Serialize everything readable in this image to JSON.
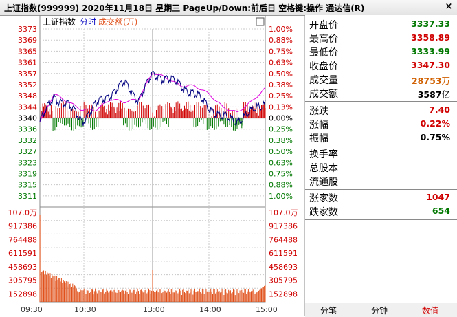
{
  "window": {
    "title": "上证指数(999999)  2020年11月18日  星期三  PageUp/Down:前后日  空格键:操作  通达信(R)",
    "close_label": "×"
  },
  "chart_header": {
    "name": "上证指数",
    "mode": "分时",
    "volume_label": "成交额(万)",
    "box_glyph": "□"
  },
  "price_axis": {
    "prices": [
      "3373",
      "3369",
      "3365",
      "3361",
      "3357",
      "3352",
      "3348",
      "3344",
      "3340",
      "3336",
      "3332",
      "3327",
      "3323",
      "3319",
      "3315",
      "3311"
    ],
    "percents": [
      "1.00%",
      "0.88%",
      "0.75%",
      "0.63%",
      "0.50%",
      "0.38%",
      "0.25%",
      "0.13%",
      "0.00%",
      "0.25%",
      "0.38%",
      "0.50%",
      "0.63%",
      "0.75%",
      "0.88%",
      "1.00%"
    ]
  },
  "volume_axis": {
    "labels": [
      "107.0万",
      "917386",
      "764488",
      "611591",
      "458693",
      "305795",
      "152898"
    ]
  },
  "time_axis": [
    "09:30",
    "10:30",
    "13:00",
    "14:00",
    "15:00"
  ],
  "colors": {
    "up": "#d00000",
    "down": "#007800",
    "index_line": "#000080",
    "avg_line": "#e000e0",
    "volume": "#e0501a",
    "grid": "#c8c8c8"
  },
  "chart_data": {
    "type": "line",
    "y_range": [
      3306.7,
      3373.3
    ],
    "prev_close": 3340.0,
    "x": [
      "09:30",
      "09:45",
      "10:00",
      "10:15",
      "10:30",
      "10:45",
      "11:00",
      "11:15",
      "11:30/13:00",
      "13:15",
      "13:30",
      "13:45",
      "14:00",
      "14:15",
      "14:30",
      "14:45",
      "15:00"
    ],
    "series": [
      {
        "values": [
          3338.5,
          3348,
          3345,
          3339,
          3345,
          3349,
          3353,
          3347,
          3356,
          3355,
          3352,
          3349,
          3344,
          3340,
          3339,
          3342,
          3346
        ]
      },
      {
        "values": [
          3338.5,
          3349,
          3346,
          3343,
          3343,
          3347,
          3346,
          3347,
          3357,
          3355,
          3352,
          3352,
          3349,
          3344,
          3342,
          3346,
          3351
        ]
      }
    ],
    "volume_ylim": [
      0,
      1070000
    ],
    "volume_peak_open": 980000
  },
  "quote": {
    "open": {
      "label": "开盘价",
      "value": "3337.33"
    },
    "high": {
      "label": "最高价",
      "value": "3358.89"
    },
    "low": {
      "label": "最低价",
      "value": "3333.99"
    },
    "close": {
      "label": "收盘价",
      "value": "3347.30"
    },
    "volume": {
      "label": "成交量",
      "value": "28753",
      "unit": "万"
    },
    "amount": {
      "label": "成交额",
      "value": "3587",
      "unit": "亿"
    },
    "change": {
      "label": "涨跌",
      "value": "7.40"
    },
    "change_pct": {
      "label": "涨幅",
      "value": "0.22%"
    },
    "amplitude": {
      "label": "振幅",
      "value": "0.75%"
    },
    "turnover": {
      "label": "换手率"
    },
    "total_shares": {
      "label": "总股本"
    },
    "float_shares": {
      "label": "流通股"
    },
    "advancers": {
      "label": "涨家数",
      "value": "1047"
    },
    "decliners": {
      "label": "跌家数",
      "value": "654"
    }
  },
  "tabs": [
    "分笔",
    "分钟",
    "数值"
  ]
}
